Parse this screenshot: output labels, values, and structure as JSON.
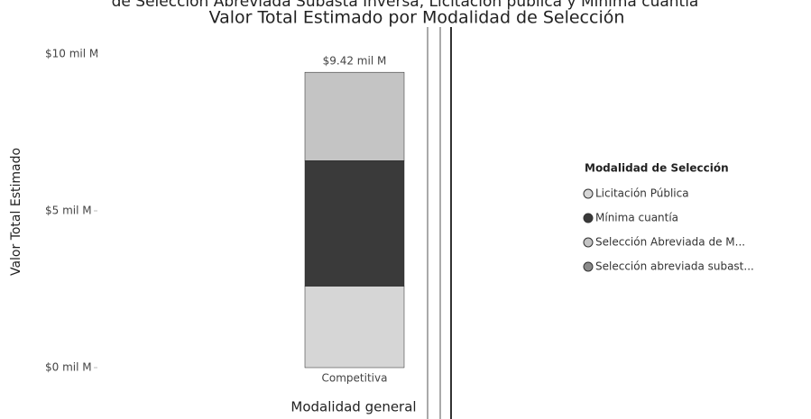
{
  "chart_data": {
    "type": "stacked_bar",
    "subtitle": "de Selección Abreviada Subasta Inversa, Licitación pública y Mínima cuantía",
    "title": "Valor Total Estimado por Modalidad de Selección",
    "x_label": "Modalidad general",
    "y_label": "Valor Total Estimado",
    "categories": [
      "Competitiva"
    ],
    "series": [
      {
        "name": "Licitación Pública",
        "color": "#d6d6d6",
        "values": [
          2.6
        ]
      },
      {
        "name": "Mínima cuantía",
        "color": "#3a3a3a",
        "values": [
          4.0
        ]
      },
      {
        "name": "Selección Abreviada de M...",
        "color": "#c4c4c4",
        "values": [
          2.82
        ]
      },
      {
        "name": "Selección abreviada subast...",
        "color": "#8a8a8a",
        "values": [
          0
        ]
      }
    ],
    "total_labels": [
      "$9.42 mil M"
    ],
    "ylim": [
      0,
      10.5
    ],
    "yticks": [
      {
        "value": 0,
        "label": "$0 mil M"
      },
      {
        "value": 5,
        "label": "$5 mil M"
      },
      {
        "value": 10,
        "label": "$10 mil M"
      }
    ],
    "legend_title": "Modalidad de Selección",
    "legend_position": "right"
  }
}
